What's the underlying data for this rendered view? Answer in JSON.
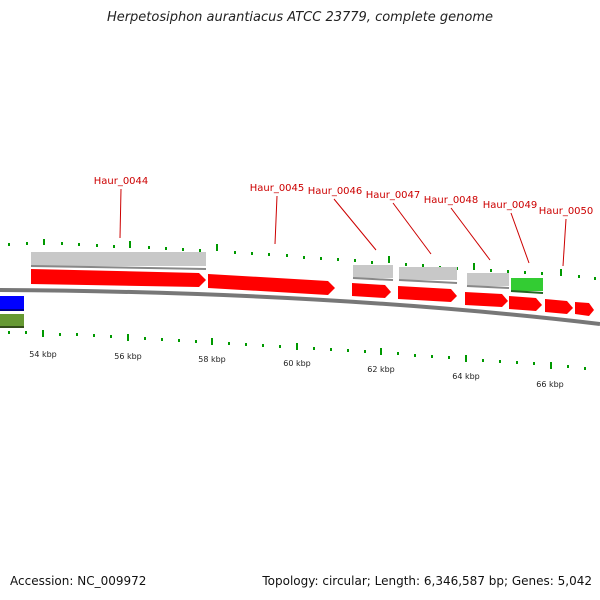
{
  "title": "Herpetosiphon aurantiacus ATCC 23779, complete genome",
  "footer": {
    "accession": "Accession: NC_009972",
    "summary": "Topology: circular; Length: 6,346,587 bp; Genes: 5,042"
  },
  "colors": {
    "gene_cds": "#ff0000",
    "gene_gray": "#c8c8c8",
    "gene_green": "#33cc33",
    "gene_blue": "#0000ff",
    "gene_olive": "#669933",
    "backbone": "#777777",
    "tick": "#009900",
    "label": "#cc0000"
  },
  "axis": {
    "unit": "kbp",
    "ticks": [
      {
        "kbp": 54,
        "label": "54 kbp"
      },
      {
        "kbp": 56,
        "label": "56 kbp"
      },
      {
        "kbp": 58,
        "label": "58 kbp"
      },
      {
        "kbp": 60,
        "label": "60 kbp"
      },
      {
        "kbp": 62,
        "label": "62 kbp"
      },
      {
        "kbp": 64,
        "label": "64 kbp"
      },
      {
        "kbp": 66,
        "label": "66 kbp"
      }
    ]
  },
  "gene_labels": [
    "Haur_0044",
    "Haur_0045",
    "Haur_0046",
    "Haur_0047",
    "Haur_0048",
    "Haur_0049",
    "Haur_0050"
  ]
}
